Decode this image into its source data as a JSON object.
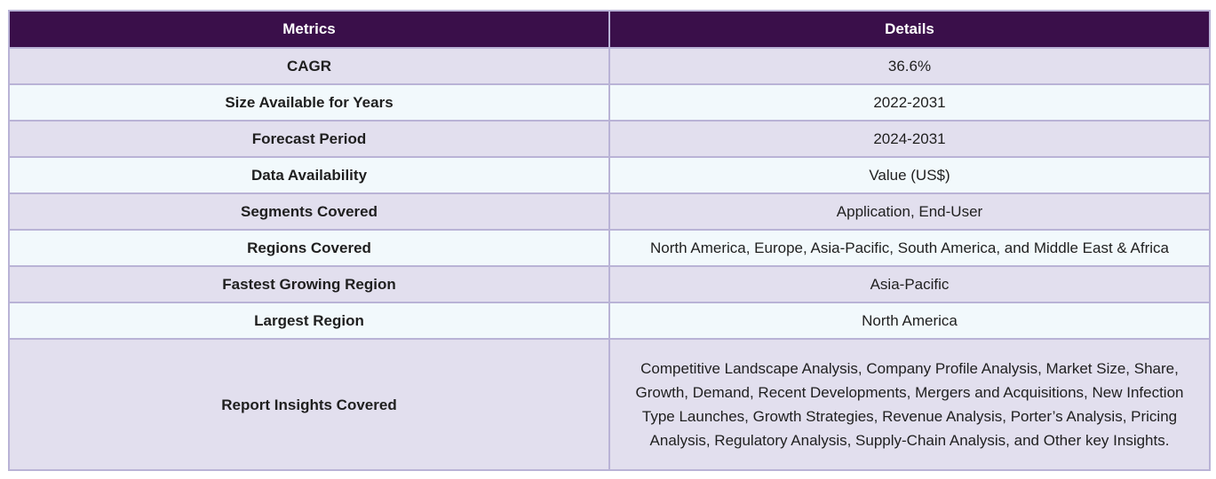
{
  "table": {
    "headers": {
      "metrics": "Metrics",
      "details": "Details"
    },
    "rows": [
      {
        "metric": "CAGR",
        "detail": "36.6%"
      },
      {
        "metric": "Size Available for Years",
        "detail": "2022-2031"
      },
      {
        "metric": "Forecast Period",
        "detail": "2024-2031"
      },
      {
        "metric": "Data Availability",
        "detail": "Value (US$)"
      },
      {
        "metric": "Segments Covered",
        "detail": "Application, End-User"
      },
      {
        "metric": "Regions Covered",
        "detail": "North America, Europe, Asia-Pacific, South America, and Middle East & Africa"
      },
      {
        "metric": "Fastest Growing Region",
        "detail": "Asia-Pacific"
      },
      {
        "metric": "Largest Region",
        "detail": "North America"
      },
      {
        "metric": "Report Insights Covered",
        "detail": "Competitive Landscape Analysis, Company Profile Analysis, Market Size, Share, Growth, Demand, Recent Developments, Mergers and Acquisitions, New Infection Type Launches, Growth Strategies, Revenue Analysis, Porter’s Analysis, Pricing Analysis, Regulatory Analysis, Supply-Chain Analysis, and Other key Insights."
      }
    ]
  },
  "colors": {
    "header_bg": "#3a0f4a",
    "row_odd_bg": "#e2dfee",
    "row_even_bg": "#f2f9fc",
    "border": "#b9b3d6"
  }
}
